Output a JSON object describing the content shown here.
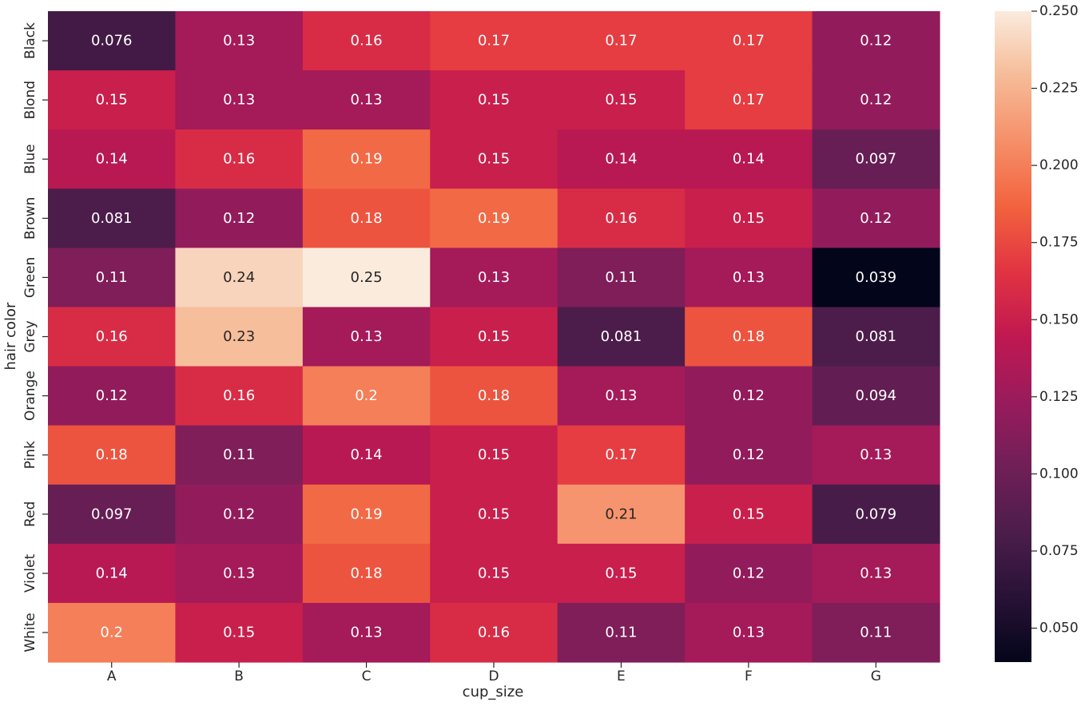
{
  "chart_data": {
    "type": "heatmap",
    "xlabel": "cup_size",
    "ylabel": "hair color",
    "x_categories": [
      "A",
      "B",
      "C",
      "D",
      "E",
      "F",
      "G"
    ],
    "y_categories": [
      "Black",
      "Blond",
      "Blue",
      "Brown",
      "Green",
      "Grey",
      "Orange",
      "Pink",
      "Red",
      "Violet",
      "White"
    ],
    "values": [
      [
        0.076,
        0.13,
        0.16,
        0.17,
        0.17,
        0.17,
        0.12
      ],
      [
        0.15,
        0.13,
        0.13,
        0.15,
        0.15,
        0.17,
        0.12
      ],
      [
        0.14,
        0.16,
        0.19,
        0.15,
        0.14,
        0.14,
        0.097
      ],
      [
        0.081,
        0.12,
        0.18,
        0.19,
        0.16,
        0.15,
        0.12
      ],
      [
        0.11,
        0.24,
        0.25,
        0.13,
        0.11,
        0.13,
        0.039
      ],
      [
        0.16,
        0.23,
        0.13,
        0.15,
        0.081,
        0.18,
        0.081
      ],
      [
        0.12,
        0.16,
        0.2,
        0.18,
        0.13,
        0.12,
        0.094
      ],
      [
        0.18,
        0.11,
        0.14,
        0.15,
        0.17,
        0.12,
        0.13
      ],
      [
        0.097,
        0.12,
        0.19,
        0.15,
        0.21,
        0.15,
        0.079
      ],
      [
        0.14,
        0.13,
        0.18,
        0.15,
        0.15,
        0.12,
        0.13
      ],
      [
        0.2,
        0.15,
        0.13,
        0.16,
        0.11,
        0.13,
        0.11
      ]
    ],
    "value_labels": [
      [
        "0.076",
        "0.13",
        "0.16",
        "0.17",
        "0.17",
        "0.17",
        "0.12"
      ],
      [
        "0.15",
        "0.13",
        "0.13",
        "0.15",
        "0.15",
        "0.17",
        "0.12"
      ],
      [
        "0.14",
        "0.16",
        "0.19",
        "0.15",
        "0.14",
        "0.14",
        "0.097"
      ],
      [
        "0.081",
        "0.12",
        "0.18",
        "0.19",
        "0.16",
        "0.15",
        "0.12"
      ],
      [
        "0.11",
        "0.24",
        "0.25",
        "0.13",
        "0.11",
        "0.13",
        "0.039"
      ],
      [
        "0.16",
        "0.23",
        "0.13",
        "0.15",
        "0.081",
        "0.18",
        "0.081"
      ],
      [
        "0.12",
        "0.16",
        "0.2",
        "0.18",
        "0.13",
        "0.12",
        "0.094"
      ],
      [
        "0.18",
        "0.11",
        "0.14",
        "0.15",
        "0.17",
        "0.12",
        "0.13"
      ],
      [
        "0.097",
        "0.12",
        "0.19",
        "0.15",
        "0.21",
        "0.15",
        "0.079"
      ],
      [
        "0.14",
        "0.13",
        "0.18",
        "0.15",
        "0.15",
        "0.12",
        "0.13"
      ],
      [
        "0.2",
        "0.15",
        "0.13",
        "0.16",
        "0.11",
        "0.13",
        "0.11"
      ]
    ],
    "colormap": "rocket",
    "vmin": 0.039,
    "vmax": 0.25,
    "colorbar_ticks": [
      0.05,
      0.075,
      0.1,
      0.125,
      0.15,
      0.175,
      0.2,
      0.225,
      0.25
    ],
    "colorbar_tick_labels": [
      "0.050",
      "0.075",
      "0.100",
      "0.125",
      "0.150",
      "0.175",
      "0.200",
      "0.225",
      "0.250"
    ]
  }
}
